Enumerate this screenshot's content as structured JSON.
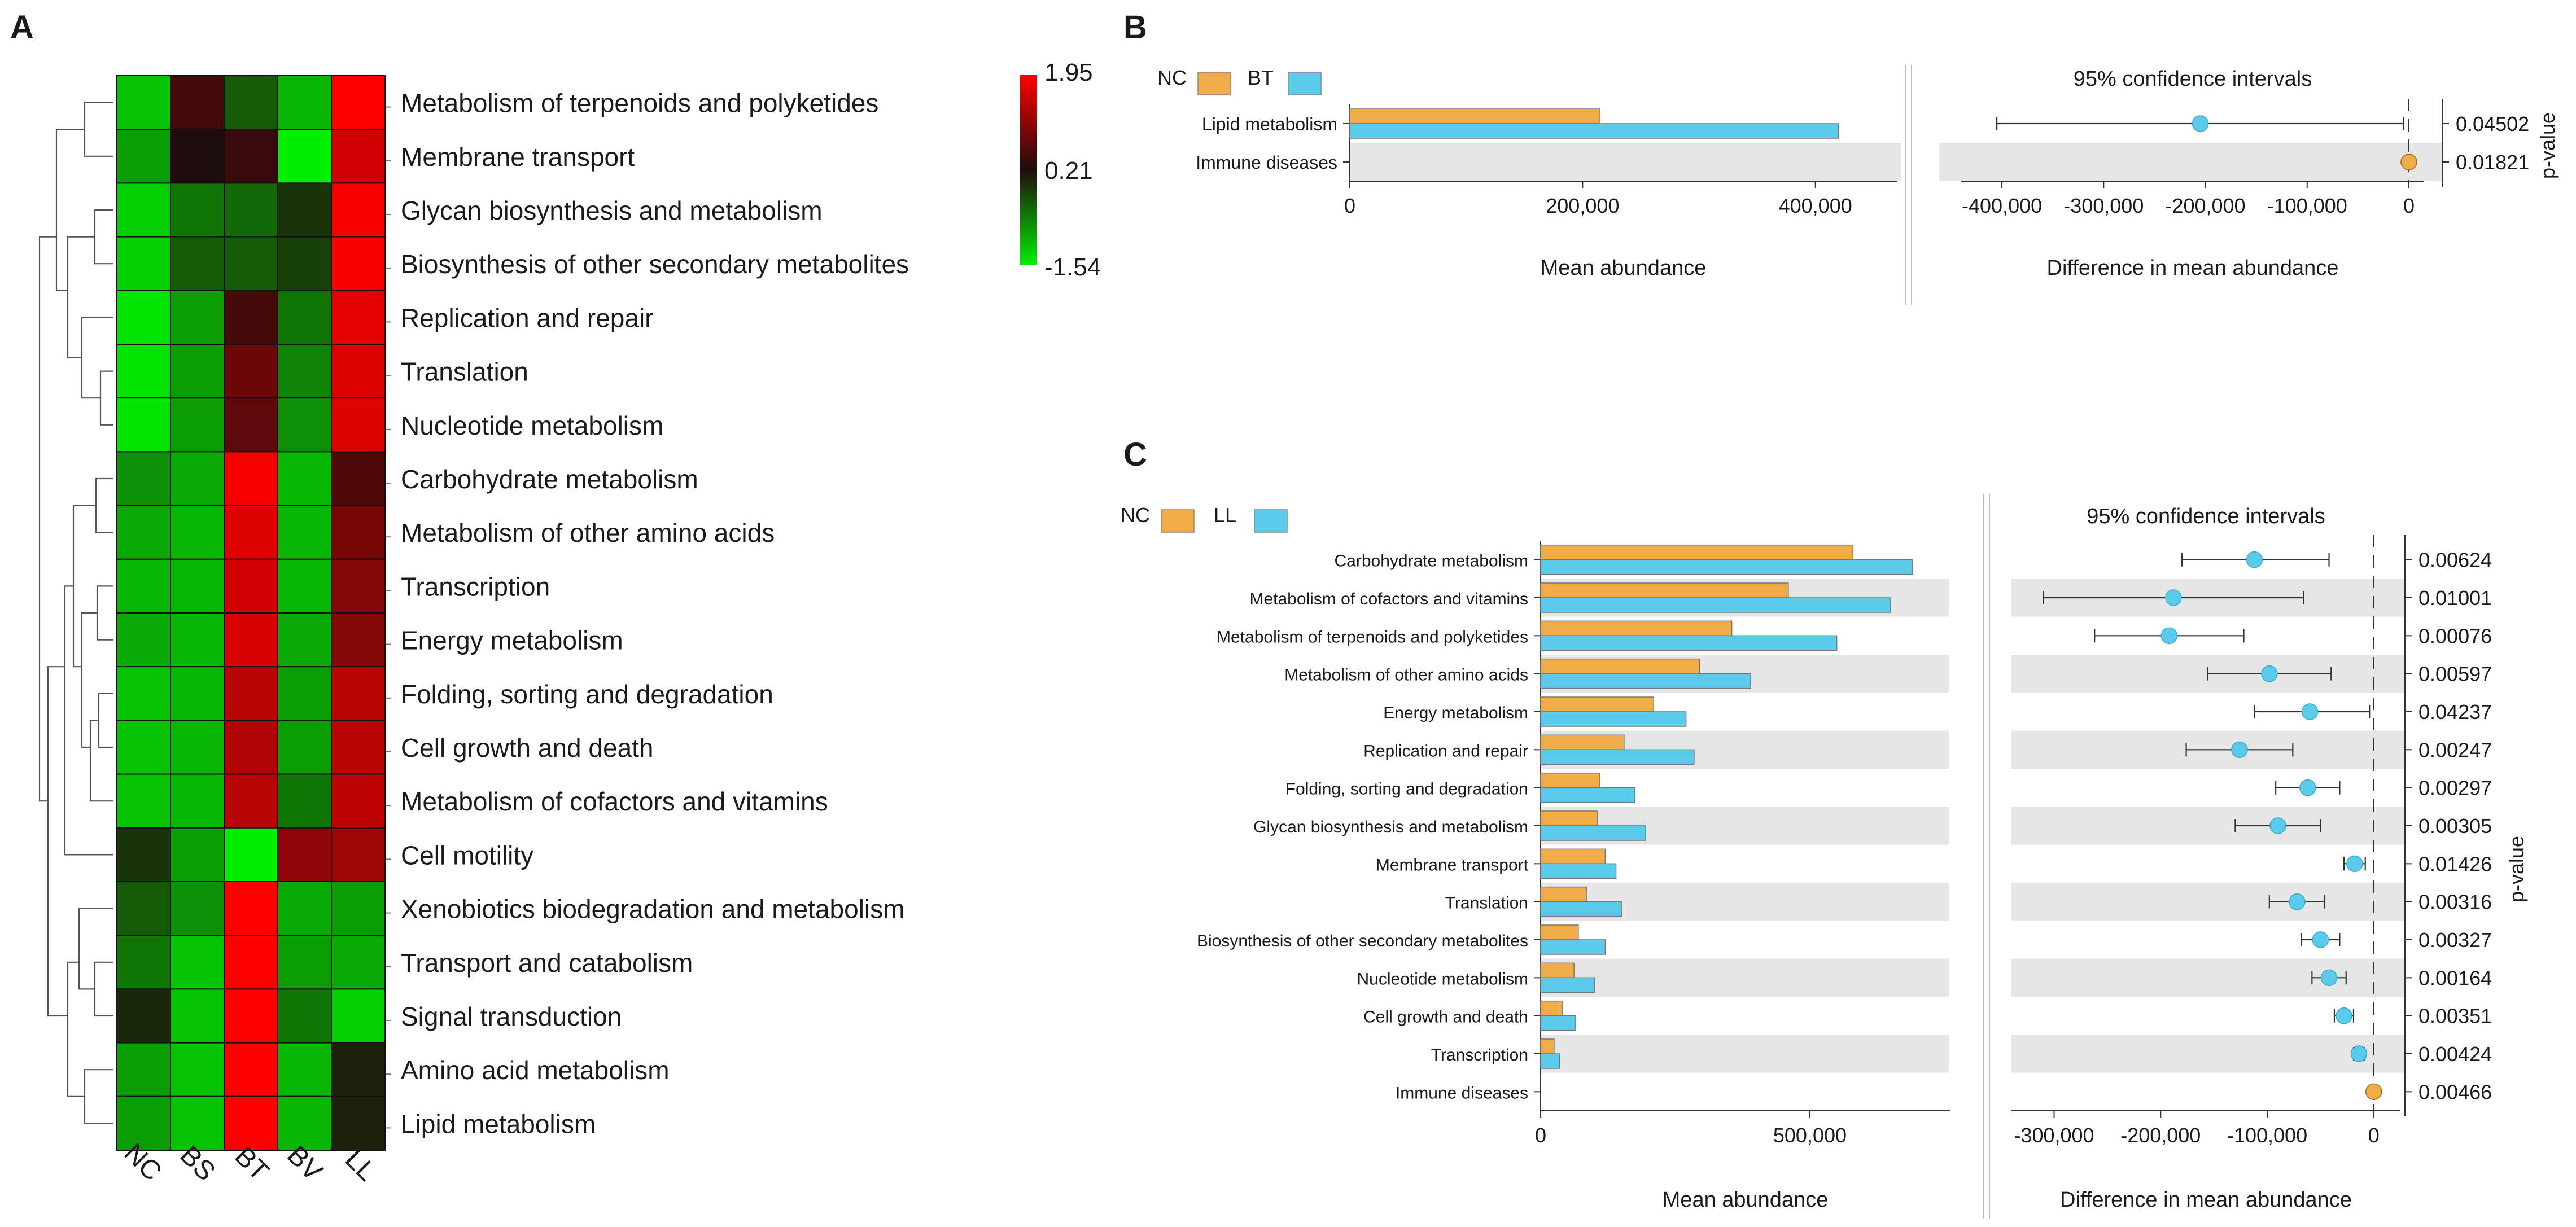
{
  "chart_data": [
    {
      "panel": "A",
      "type": "heatmap",
      "title": "",
      "columns": [
        "NC",
        "BS",
        "BT",
        "BV",
        "LL"
      ],
      "rows": [
        "Metabolism of terpenoids and polyketides",
        "Membrane transport",
        "Glycan biosynthesis and metabolism",
        "Biosynthesis of other secondary metabolites",
        "Replication and repair",
        "Translation",
        "Nucleotide metabolism",
        "Carbohydrate metabolism",
        "Metabolism of other amino acids",
        "Transcription",
        "Energy metabolism",
        "Folding, sorting and degradation",
        "Cell growth and death",
        "Metabolism of cofactors and vitamins",
        "Cell motility",
        "Xenobiotics biodegradation and metabolism",
        "Transport and catabolism",
        "Signal transduction",
        "Amino acid metabolism",
        "Lipid metabolism"
      ],
      "values": [
        [
          -1.2,
          0.5,
          -0.4,
          -1.1,
          1.95
        ],
        [
          -0.9,
          0.2,
          0.4,
          -1.54,
          1.6
        ],
        [
          -1.3,
          -0.6,
          -0.5,
          -0.1,
          1.9
        ],
        [
          -1.3,
          -0.4,
          -0.4,
          -0.2,
          1.9
        ],
        [
          -1.45,
          -0.9,
          0.5,
          -0.6,
          1.75
        ],
        [
          -1.45,
          -0.9,
          0.8,
          -0.7,
          1.7
        ],
        [
          -1.45,
          -0.9,
          0.7,
          -0.8,
          1.7
        ],
        [
          -0.8,
          -1.0,
          1.9,
          -1.1,
          0.6
        ],
        [
          -1.0,
          -1.1,
          1.7,
          -1.1,
          0.9
        ],
        [
          -1.1,
          -1.1,
          1.6,
          -1.1,
          1.0
        ],
        [
          -1.0,
          -1.1,
          1.65,
          -1.0,
          1.0
        ],
        [
          -1.2,
          -1.1,
          1.4,
          -0.9,
          1.4
        ],
        [
          -1.2,
          -1.1,
          1.35,
          -0.9,
          1.4
        ],
        [
          -1.2,
          -1.1,
          1.4,
          -0.6,
          1.45
        ],
        [
          -0.1,
          -0.9,
          -1.54,
          1.1,
          1.2
        ],
        [
          -0.4,
          -0.8,
          1.95,
          -1.0,
          -0.9
        ],
        [
          -0.6,
          -1.2,
          1.95,
          -0.9,
          -1.0
        ],
        [
          0.0,
          -1.2,
          1.95,
          -0.6,
          -1.3
        ],
        [
          -0.9,
          -1.2,
          1.95,
          -1.1,
          0.05
        ],
        [
          -0.9,
          -1.2,
          1.95,
          -1.1,
          0.05
        ]
      ],
      "colorbar": {
        "max": 1.95,
        "mid": 0.21,
        "min": -1.54,
        "max_label": "1.95",
        "mid_label": "0.21",
        "min_label": "-1.54"
      },
      "row_dendrogram": true
    },
    {
      "panel": "B",
      "type": "bar",
      "legend": [
        {
          "name": "NC",
          "color": "#f0ac46"
        },
        {
          "name": "BT",
          "color": "#5bcbeb"
        }
      ],
      "categories": [
        "Lipid metabolism",
        "Immune diseases"
      ],
      "series": [
        {
          "name": "NC",
          "values": [
            215000,
            0
          ]
        },
        {
          "name": "BT",
          "values": [
            420000,
            0
          ]
        }
      ],
      "xlabel": "Mean abundance",
      "xlim": [
        0,
        470000
      ],
      "xticks": [
        0,
        200000,
        400000
      ],
      "xtick_labels": [
        "0",
        "200,000",
        "400,000"
      ],
      "ci_title": "95% confidence intervals",
      "ci_xlabel": "Difference in mean abundance",
      "ci_xlim": [
        -440000,
        15000
      ],
      "ci_xticks": [
        -400000,
        -300000,
        -200000,
        -100000,
        0
      ],
      "ci_xtick_labels": [
        "-400,000",
        "-300,000",
        "-200,000",
        "-100,000",
        "0"
      ],
      "ci": [
        {
          "estimate": -205000,
          "low": -405000,
          "high": -5000,
          "color": "#5bcbeb"
        },
        {
          "estimate": 0,
          "low": -3000,
          "high": 3000,
          "color": "#f0ac46"
        }
      ],
      "pvalue_label": "p-value",
      "pvalues": [
        "0.04502",
        "0.01821"
      ]
    },
    {
      "panel": "C",
      "type": "bar",
      "legend": [
        {
          "name": "NC",
          "color": "#f0ac46"
        },
        {
          "name": "LL",
          "color": "#5bcbeb"
        }
      ],
      "categories": [
        "Carbohydrate metabolism",
        "Metabolism of cofactors and vitamins",
        "Metabolism of terpenoids and polyketides",
        "Metabolism of other amino acids",
        "Energy metabolism",
        "Replication and repair",
        "Folding, sorting and degradation",
        "Glycan biosynthesis and metabolism",
        "Membrane transport",
        "Translation",
        "Biosynthesis of other secondary metabolites",
        "Nucleotide metabolism",
        "Cell growth and death",
        "Transcription",
        "Immune diseases"
      ],
      "series": [
        {
          "name": "NC",
          "values": [
            580000,
            460000,
            355000,
            295000,
            210000,
            155000,
            110000,
            105000,
            120000,
            85000,
            70000,
            62000,
            40000,
            25000,
            0
          ]
        },
        {
          "name": "LL",
          "values": [
            690000,
            650000,
            550000,
            390000,
            270000,
            285000,
            175000,
            195000,
            140000,
            150000,
            120000,
            100000,
            65000,
            35000,
            0
          ]
        }
      ],
      "xlabel": "Mean abundance",
      "xlim": [
        0,
        760000
      ],
      "xticks": [
        0,
        500000
      ],
      "xtick_labels": [
        "0",
        "500,000"
      ],
      "ci_title": "95% confidence intervals",
      "ci_xlabel": "Difference in mean abundance",
      "ci_xlim": [
        -340000,
        25000
      ],
      "ci_xticks": [
        -300000,
        -200000,
        -100000,
        0
      ],
      "ci_xtick_labels": [
        "-300,000",
        "-200,000",
        "-100,000",
        "0"
      ],
      "ci": [
        {
          "estimate": -112000,
          "low": -180000,
          "high": -42000,
          "color": "#5bcbeb"
        },
        {
          "estimate": -188000,
          "low": -310000,
          "high": -66000,
          "color": "#5bcbeb"
        },
        {
          "estimate": -192000,
          "low": -262000,
          "high": -122000,
          "color": "#5bcbeb"
        },
        {
          "estimate": -98000,
          "low": -156000,
          "high": -40000,
          "color": "#5bcbeb"
        },
        {
          "estimate": -60000,
          "low": -112000,
          "high": -4000,
          "color": "#5bcbeb"
        },
        {
          "estimate": -126000,
          "low": -176000,
          "high": -76000,
          "color": "#5bcbeb"
        },
        {
          "estimate": -62000,
          "low": -92000,
          "high": -32000,
          "color": "#5bcbeb"
        },
        {
          "estimate": -90000,
          "low": -130000,
          "high": -50000,
          "color": "#5bcbeb"
        },
        {
          "estimate": -18000,
          "low": -28000,
          "high": -8000,
          "color": "#5bcbeb"
        },
        {
          "estimate": -72000,
          "low": -98000,
          "high": -46000,
          "color": "#5bcbeb"
        },
        {
          "estimate": -50000,
          "low": -68000,
          "high": -32000,
          "color": "#5bcbeb"
        },
        {
          "estimate": -42000,
          "low": -58000,
          "high": -26000,
          "color": "#5bcbeb"
        },
        {
          "estimate": -28000,
          "low": -37000,
          "high": -19000,
          "color": "#5bcbeb"
        },
        {
          "estimate": -14000,
          "low": -19000,
          "high": -9000,
          "color": "#5bcbeb"
        },
        {
          "estimate": 0,
          "low": -2000,
          "high": 2000,
          "color": "#f0ac46"
        }
      ],
      "pvalue_label": "p-value",
      "pvalues": [
        "0.00624",
        "0.01001",
        "0.00076",
        "0.00597",
        "0.04237",
        "0.00247",
        "0.00297",
        "0.00305",
        "0.01426",
        "0.00316",
        "0.00327",
        "0.00164",
        "0.00351",
        "0.00424",
        "0.00466"
      ]
    }
  ]
}
